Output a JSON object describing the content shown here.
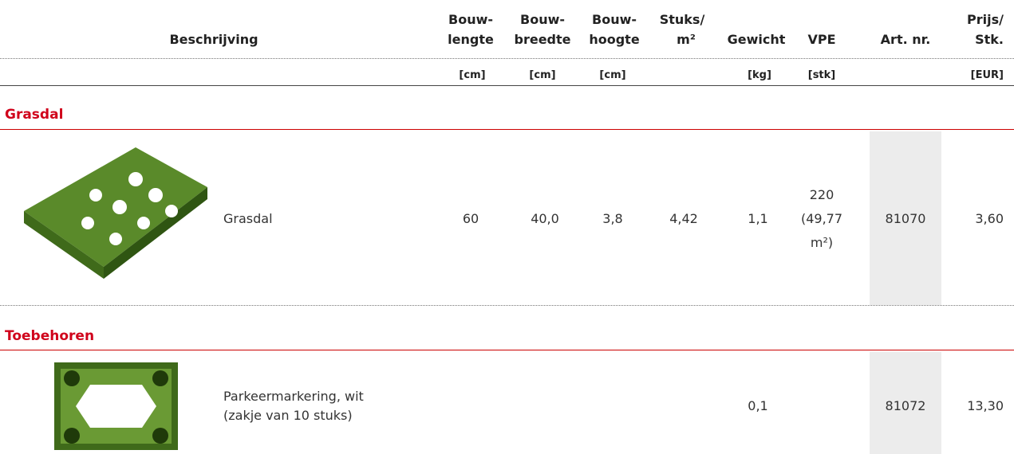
{
  "header": {
    "columns": [
      {
        "label": [
          "Beschrijving"
        ]
      },
      {
        "label": [
          "Bouw-",
          "lengte"
        ],
        "unit": "[cm]"
      },
      {
        "label": [
          "Bouw-",
          "breedte"
        ],
        "unit": "[cm]"
      },
      {
        "label": [
          "Bouw-",
          "hoogte"
        ],
        "unit": "[cm]"
      },
      {
        "label": [
          "Stuks/",
          "m²"
        ]
      },
      {
        "label": [
          "Gewicht"
        ],
        "unit": "[kg]"
      },
      {
        "label": [
          "VPE"
        ],
        "unit": "[stk]"
      },
      {
        "label": [
          "Art. nr."
        ]
      },
      {
        "label": [
          "Prijs/",
          "Stk."
        ],
        "unit": "[EUR]"
      }
    ]
  },
  "sections": [
    {
      "title": "Grasdal",
      "rows": [
        {
          "description": [
            "Grasdal"
          ],
          "lengte": "60",
          "breedte": "40,0",
          "hoogte": "3,8",
          "stuks": "4,42",
          "gewicht": "1,1",
          "vpe": [
            "220",
            "(49,77",
            "m²)"
          ],
          "art_nr": "81070",
          "prijs": "3,60"
        }
      ]
    },
    {
      "title": "Toebehoren",
      "rows": [
        {
          "description": [
            "Parkeermarkering, wit",
            "(zakje van 10 stuks)"
          ],
          "gewicht": "0,1",
          "art_nr": "81072",
          "prijs": "13,30"
        }
      ]
    }
  ]
}
